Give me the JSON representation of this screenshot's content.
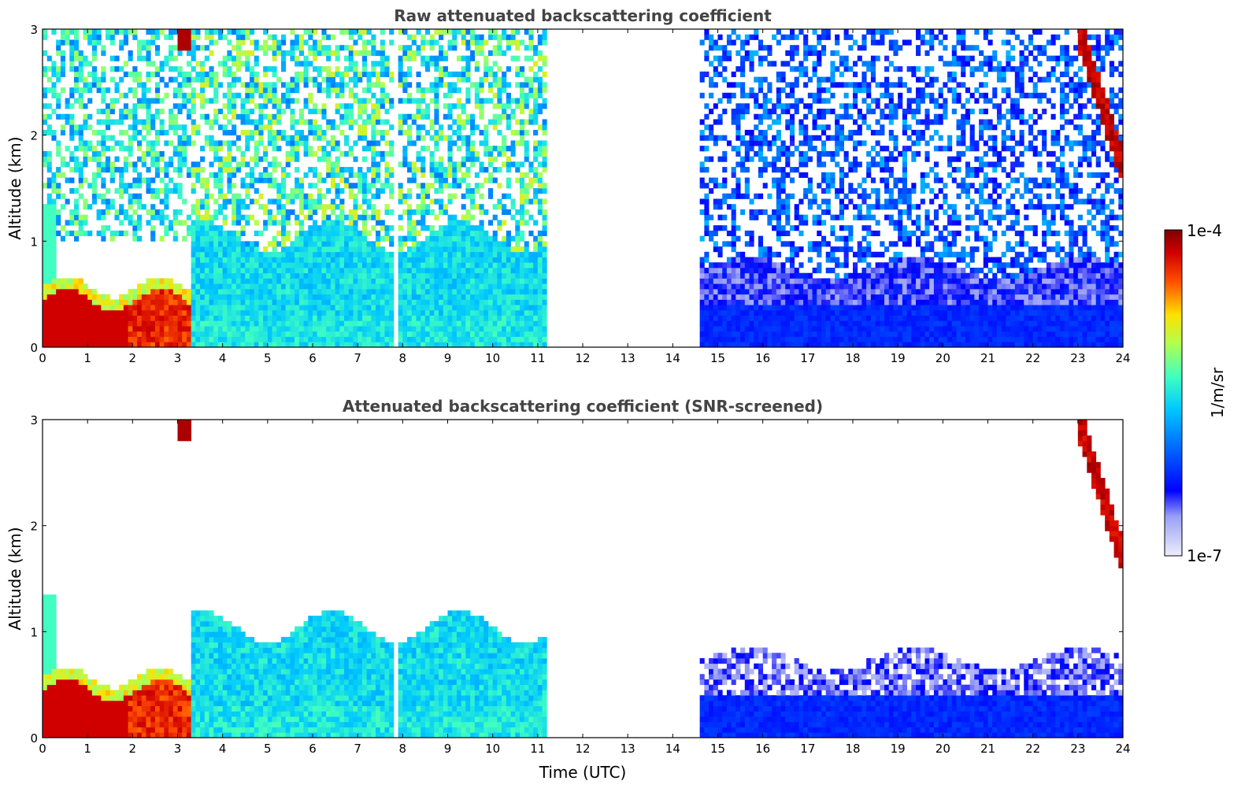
{
  "chart_data": [
    {
      "type": "heatmap",
      "title": "Raw attenuated backscattering coefficient",
      "xlabel": "",
      "ylabel": "Altitude (km)",
      "xlim": [
        0,
        24
      ],
      "ylim": [
        0,
        3
      ],
      "x_ticks": [
        "0",
        "1",
        "2",
        "3",
        "4",
        "5",
        "6",
        "7",
        "8",
        "9",
        "10",
        "11",
        "12",
        "13",
        "14",
        "15",
        "16",
        "17",
        "18",
        "19",
        "20",
        "21",
        "22",
        "23",
        "24"
      ],
      "y_ticks": [
        "0",
        "1",
        "2",
        "3"
      ],
      "data_gap_hours": [
        11.3,
        14.55
      ],
      "features": [
        {
          "name": "boundary-layer aerosol",
          "x_range": [
            0,
            3.3
          ],
          "altitude_km": [
            0,
            0.5
          ],
          "level": "high"
        },
        {
          "name": "cloud",
          "x_range": [
            3.0,
            3.3
          ],
          "altitude_km": [
            2.8,
            3.0
          ],
          "level": "high"
        },
        {
          "name": "cloud",
          "x_range": [
            23.0,
            24
          ],
          "altitude_km": [
            1.7,
            3.0
          ],
          "level": "high"
        }
      ]
    },
    {
      "type": "heatmap",
      "title": "Attenuated backscattering coefficient (SNR-screened)",
      "xlabel": "Time (UTC)",
      "ylabel": "Altitude (km)",
      "xlim": [
        0,
        24
      ],
      "ylim": [
        0,
        3
      ],
      "x_ticks": [
        "0",
        "1",
        "2",
        "3",
        "4",
        "5",
        "6",
        "7",
        "8",
        "9",
        "10",
        "11",
        "12",
        "13",
        "14",
        "15",
        "16",
        "17",
        "18",
        "19",
        "20",
        "21",
        "22",
        "23",
        "24"
      ],
      "y_ticks": [
        "0",
        "1",
        "2",
        "3"
      ],
      "data_gap_hours": [
        11.3,
        14.55
      ],
      "features": [
        {
          "name": "boundary-layer aerosol",
          "x_range": [
            0,
            3.3
          ],
          "altitude_km": [
            0,
            0.6
          ],
          "level": "high"
        },
        {
          "name": "aerosol layer",
          "x_range": [
            3.3,
            11.3
          ],
          "altitude_km": [
            0,
            1.2
          ],
          "level": "medium"
        },
        {
          "name": "aerosol layer",
          "x_range": [
            14.55,
            24
          ],
          "altitude_km": [
            0,
            0.9
          ],
          "level": "low"
        },
        {
          "name": "cloud",
          "x_range": [
            23.0,
            24
          ],
          "altitude_km": [
            1.7,
            3.0
          ],
          "level": "high"
        }
      ]
    }
  ],
  "colorbar": {
    "max_label": "1e-4",
    "min_label": "1e-7",
    "unit_label": "1/m/sr",
    "colormap": "jet"
  }
}
